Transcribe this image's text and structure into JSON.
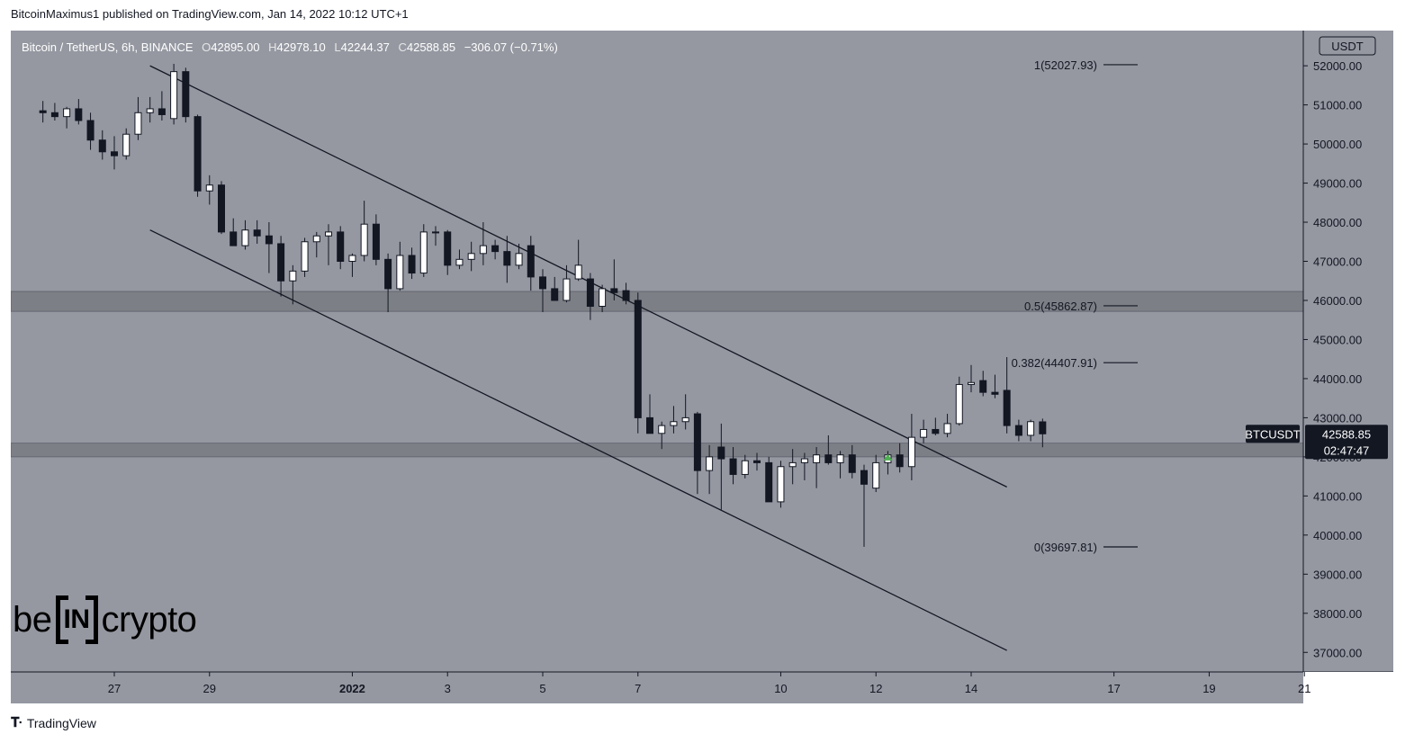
{
  "publish_line": "BitcoinMaximus1 published on TradingView.com, Jan 14, 2022 10:12 UTC+1",
  "footer_brand": "TradingView",
  "legend": {
    "symbol": "Bitcoin / TetherUS, 6h, BINANCE",
    "o_label": "O",
    "o_value": "42895.00",
    "h_label": "H",
    "h_value": "42978.10",
    "l_label": "L",
    "l_value": "42244.37",
    "c_label": "C",
    "c_value": "42588.85",
    "change": "−306.07 (−0.71%)"
  },
  "watermark": {
    "left": "be",
    "middle": "IN",
    "right": "crypto"
  },
  "colors": {
    "background": "#9598a1",
    "bullish": "#ffffff",
    "bearish": "#131722",
    "zone": "#7d7f86",
    "marker": "#4caf50"
  },
  "chart_data": {
    "type": "candlestick",
    "currency_label": "USDT",
    "ylim": [
      36500,
      52900
    ],
    "y_ticks": [
      37000,
      38000,
      39000,
      40000,
      41000,
      42000,
      43000,
      44000,
      45000,
      46000,
      47000,
      48000,
      49000,
      50000,
      51000,
      52000
    ],
    "x_ticks": [
      {
        "label": "27",
        "date": "2021-12-27"
      },
      {
        "label": "29",
        "date": "2021-12-29"
      },
      {
        "label": "2022",
        "date": "2022-01-01",
        "bold": true
      },
      {
        "label": "3",
        "date": "2022-01-03"
      },
      {
        "label": "5",
        "date": "2022-01-05"
      },
      {
        "label": "7",
        "date": "2022-01-07"
      },
      {
        "label": "10",
        "date": "2022-01-10"
      },
      {
        "label": "12",
        "date": "2022-01-12"
      },
      {
        "label": "14",
        "date": "2022-01-14"
      },
      {
        "label": "17",
        "date": "2022-01-17"
      },
      {
        "label": "19",
        "date": "2022-01-19"
      },
      {
        "label": "21",
        "date": "2022-01-21"
      }
    ],
    "price_tag": {
      "symbol": "BTCUSDT",
      "price": "42588.85",
      "countdown": "02:47:47"
    },
    "fib_levels": [
      {
        "label": "1(52027.93)",
        "value": 52027.93
      },
      {
        "label": "0.5(45862.87)",
        "value": 45862.87
      },
      {
        "label": "0.382(44407.91)",
        "value": 44407.91
      },
      {
        "label": "0(39697.81)",
        "value": 39697.81
      }
    ],
    "zones": [
      {
        "low": 45720,
        "high": 46230
      },
      {
        "low": 42000,
        "high": 42350
      }
    ],
    "channel": {
      "upper": [
        {
          "date": "2021-12-27 18:00",
          "price": 52000
        },
        {
          "date": "2022-01-14 18:00",
          "price": 41230
        }
      ],
      "lower": [
        {
          "date": "2021-12-27 18:00",
          "price": 47800
        },
        {
          "date": "2022-01-14 18:00",
          "price": 37050
        }
      ]
    },
    "marker": {
      "date": "2022-01-12 06:00",
      "price": 42000
    },
    "candles": [
      {
        "t": "2021-12-25 12:00",
        "o": 50850,
        "h": 51100,
        "l": 50550,
        "c": 50800
      },
      {
        "t": "2021-12-25 18:00",
        "o": 50800,
        "h": 51050,
        "l": 50600,
        "c": 50700
      },
      {
        "t": "2021-12-26 00:00",
        "o": 50700,
        "h": 50950,
        "l": 50400,
        "c": 50900
      },
      {
        "t": "2021-12-26 06:00",
        "o": 50900,
        "h": 51150,
        "l": 50500,
        "c": 50600
      },
      {
        "t": "2021-12-26 12:00",
        "o": 50600,
        "h": 50800,
        "l": 49850,
        "c": 50100
      },
      {
        "t": "2021-12-26 18:00",
        "o": 50100,
        "h": 50350,
        "l": 49600,
        "c": 49800
      },
      {
        "t": "2021-12-27 00:00",
        "o": 49800,
        "h": 50200,
        "l": 49350,
        "c": 49700
      },
      {
        "t": "2021-12-27 06:00",
        "o": 49700,
        "h": 50400,
        "l": 49600,
        "c": 50250
      },
      {
        "t": "2021-12-27 12:00",
        "o": 50250,
        "h": 51200,
        "l": 50100,
        "c": 50800
      },
      {
        "t": "2021-12-27 18:00",
        "o": 50800,
        "h": 51200,
        "l": 50550,
        "c": 50900
      },
      {
        "t": "2021-12-28 00:00",
        "o": 50900,
        "h": 51350,
        "l": 50600,
        "c": 50750
      },
      {
        "t": "2021-12-28 06:00",
        "o": 50650,
        "h": 52050,
        "l": 50500,
        "c": 51850
      },
      {
        "t": "2021-12-28 12:00",
        "o": 51850,
        "h": 51950,
        "l": 50550,
        "c": 50700
      },
      {
        "t": "2021-12-28 18:00",
        "o": 50700,
        "h": 50750,
        "l": 48650,
        "c": 48800
      },
      {
        "t": "2021-12-29 00:00",
        "o": 48800,
        "h": 49200,
        "l": 48450,
        "c": 48950
      },
      {
        "t": "2021-12-29 06:00",
        "o": 48950,
        "h": 49050,
        "l": 47700,
        "c": 47750
      },
      {
        "t": "2021-12-29 12:00",
        "o": 47750,
        "h": 48100,
        "l": 47400,
        "c": 47400
      },
      {
        "t": "2021-12-29 18:00",
        "o": 47400,
        "h": 48050,
        "l": 47300,
        "c": 47800
      },
      {
        "t": "2021-12-30 00:00",
        "o": 47800,
        "h": 48050,
        "l": 47450,
        "c": 47650
      },
      {
        "t": "2021-12-30 06:00",
        "o": 47650,
        "h": 48000,
        "l": 46700,
        "c": 47450
      },
      {
        "t": "2021-12-30 12:00",
        "o": 47450,
        "h": 47650,
        "l": 46100,
        "c": 46500
      },
      {
        "t": "2021-12-30 18:00",
        "o": 46500,
        "h": 46900,
        "l": 45900,
        "c": 46750
      },
      {
        "t": "2021-12-31 00:00",
        "o": 46750,
        "h": 47600,
        "l": 46600,
        "c": 47500
      },
      {
        "t": "2021-12-31 06:00",
        "o": 47500,
        "h": 47750,
        "l": 47100,
        "c": 47650
      },
      {
        "t": "2021-12-31 12:00",
        "o": 47650,
        "h": 47950,
        "l": 46900,
        "c": 47750
      },
      {
        "t": "2021-12-31 18:00",
        "o": 47750,
        "h": 47900,
        "l": 46800,
        "c": 47000
      },
      {
        "t": "2022-01-01 00:00",
        "o": 47000,
        "h": 47200,
        "l": 46600,
        "c": 47150
      },
      {
        "t": "2022-01-01 06:00",
        "o": 47150,
        "h": 48550,
        "l": 47000,
        "c": 47950
      },
      {
        "t": "2022-01-01 12:00",
        "o": 47950,
        "h": 48200,
        "l": 46900,
        "c": 47050
      },
      {
        "t": "2022-01-01 18:00",
        "o": 47050,
        "h": 47200,
        "l": 45700,
        "c": 46300
      },
      {
        "t": "2022-01-02 00:00",
        "o": 46300,
        "h": 47500,
        "l": 46250,
        "c": 47150
      },
      {
        "t": "2022-01-02 06:00",
        "o": 47150,
        "h": 47350,
        "l": 46550,
        "c": 46700
      },
      {
        "t": "2022-01-02 12:00",
        "o": 46700,
        "h": 47950,
        "l": 46600,
        "c": 47750
      },
      {
        "t": "2022-01-02 18:00",
        "o": 47750,
        "h": 47900,
        "l": 47400,
        "c": 47750
      },
      {
        "t": "2022-01-03 00:00",
        "o": 47750,
        "h": 47800,
        "l": 46650,
        "c": 46900
      },
      {
        "t": "2022-01-03 06:00",
        "o": 46900,
        "h": 47300,
        "l": 46800,
        "c": 47050
      },
      {
        "t": "2022-01-03 12:00",
        "o": 47050,
        "h": 47500,
        "l": 46750,
        "c": 47200
      },
      {
        "t": "2022-01-03 18:00",
        "o": 47200,
        "h": 48000,
        "l": 46900,
        "c": 47400
      },
      {
        "t": "2022-01-04 00:00",
        "o": 47400,
        "h": 47550,
        "l": 47050,
        "c": 47250
      },
      {
        "t": "2022-01-04 06:00",
        "o": 47250,
        "h": 47650,
        "l": 46450,
        "c": 46900
      },
      {
        "t": "2022-01-04 12:00",
        "o": 46900,
        "h": 47450,
        "l": 46800,
        "c": 47200
      },
      {
        "t": "2022-01-04 18:00",
        "o": 47400,
        "h": 47650,
        "l": 46250,
        "c": 46600
      },
      {
        "t": "2022-01-05 00:00",
        "o": 46600,
        "h": 46800,
        "l": 45700,
        "c": 46300
      },
      {
        "t": "2022-01-05 06:00",
        "o": 46300,
        "h": 46600,
        "l": 46000,
        "c": 46000
      },
      {
        "t": "2022-01-05 12:00",
        "o": 46000,
        "h": 46900,
        "l": 45950,
        "c": 46550
      },
      {
        "t": "2022-01-05 18:00",
        "o": 46550,
        "h": 47550,
        "l": 46500,
        "c": 46900
      },
      {
        "t": "2022-01-06 00:00",
        "o": 46550,
        "h": 46700,
        "l": 45500,
        "c": 45850
      },
      {
        "t": "2022-01-06 06:00",
        "o": 45850,
        "h": 46400,
        "l": 45700,
        "c": 46300
      },
      {
        "t": "2022-01-06 12:00",
        "o": 46300,
        "h": 47050,
        "l": 46000,
        "c": 46200
      },
      {
        "t": "2022-01-06 18:00",
        "o": 46250,
        "h": 46450,
        "l": 45900,
        "c": 46000
      },
      {
        "t": "2022-01-07 00:00",
        "o": 46000,
        "h": 46200,
        "l": 42600,
        "c": 43000
      },
      {
        "t": "2022-01-07 06:00",
        "o": 43000,
        "h": 43600,
        "l": 42700,
        "c": 42600
      },
      {
        "t": "2022-01-07 12:00",
        "o": 42600,
        "h": 42900,
        "l": 42200,
        "c": 42800
      },
      {
        "t": "2022-01-07 18:00",
        "o": 42800,
        "h": 43300,
        "l": 42600,
        "c": 42900
      },
      {
        "t": "2022-01-08 00:00",
        "o": 42900,
        "h": 43600,
        "l": 42700,
        "c": 43000
      },
      {
        "t": "2022-01-08 06:00",
        "o": 43100,
        "h": 43150,
        "l": 41050,
        "c": 41650
      },
      {
        "t": "2022-01-08 12:00",
        "o": 41650,
        "h": 42300,
        "l": 41050,
        "c": 42000
      },
      {
        "t": "2022-01-08 18:00",
        "o": 42250,
        "h": 42850,
        "l": 40650,
        "c": 41950
      },
      {
        "t": "2022-01-09 00:00",
        "o": 41950,
        "h": 42250,
        "l": 41300,
        "c": 41550
      },
      {
        "t": "2022-01-09 06:00",
        "o": 41550,
        "h": 42050,
        "l": 41450,
        "c": 41900
      },
      {
        "t": "2022-01-09 12:00",
        "o": 41900,
        "h": 42100,
        "l": 41650,
        "c": 41850
      },
      {
        "t": "2022-01-09 18:00",
        "o": 41850,
        "h": 42000,
        "l": 40850,
        "c": 40850
      },
      {
        "t": "2022-01-10 00:00",
        "o": 40850,
        "h": 41900,
        "l": 40700,
        "c": 41750
      },
      {
        "t": "2022-01-10 06:00",
        "o": 41750,
        "h": 42200,
        "l": 41300,
        "c": 41850
      },
      {
        "t": "2022-01-10 12:00",
        "o": 41850,
        "h": 42100,
        "l": 41400,
        "c": 41950
      },
      {
        "t": "2022-01-10 18:00",
        "o": 41850,
        "h": 42250,
        "l": 41200,
        "c": 42050
      },
      {
        "t": "2022-01-11 00:00",
        "o": 42050,
        "h": 42550,
        "l": 41800,
        "c": 41850
      },
      {
        "t": "2022-01-11 06:00",
        "o": 41850,
        "h": 42150,
        "l": 41450,
        "c": 42050
      },
      {
        "t": "2022-01-11 12:00",
        "o": 42050,
        "h": 42300,
        "l": 41450,
        "c": 41600
      },
      {
        "t": "2022-01-11 18:00",
        "o": 41650,
        "h": 41800,
        "l": 39700,
        "c": 41300
      },
      {
        "t": "2022-01-12 00:00",
        "o": 41200,
        "h": 42050,
        "l": 41100,
        "c": 41850
      },
      {
        "t": "2022-01-12 06:00",
        "o": 41850,
        "h": 42150,
        "l": 41550,
        "c": 42050
      },
      {
        "t": "2022-01-12 12:00",
        "o": 42050,
        "h": 42350,
        "l": 41600,
        "c": 41750
      },
      {
        "t": "2022-01-12 18:00",
        "o": 41750,
        "h": 43100,
        "l": 41400,
        "c": 42500
      },
      {
        "t": "2022-01-13 00:00",
        "o": 42500,
        "h": 42950,
        "l": 42350,
        "c": 42700
      },
      {
        "t": "2022-01-13 06:00",
        "o": 42700,
        "h": 43000,
        "l": 42550,
        "c": 42600
      },
      {
        "t": "2022-01-13 12:00",
        "o": 42600,
        "h": 43100,
        "l": 42500,
        "c": 42850
      },
      {
        "t": "2022-01-13 18:00",
        "o": 42850,
        "h": 44050,
        "l": 42800,
        "c": 43850
      },
      {
        "t": "2022-01-14 00:00",
        "o": 43850,
        "h": 44350,
        "l": 43650,
        "c": 43900
      },
      {
        "t": "2022-01-14 06:00",
        "o": 43950,
        "h": 44200,
        "l": 43550,
        "c": 43650
      },
      {
        "t": "2022-01-14 12:00",
        "o": 43650,
        "h": 44100,
        "l": 43500,
        "c": 43600
      },
      {
        "t": "2022-01-14 18:00",
        "o": 43700,
        "h": 44550,
        "l": 42600,
        "c": 42800
      },
      {
        "t": "2022-01-15 00:00",
        "o": 42800,
        "h": 42950,
        "l": 42400,
        "c": 42550
      },
      {
        "t": "2022-01-15 06:00",
        "o": 42550,
        "h": 42950,
        "l": 42400,
        "c": 42900
      },
      {
        "t": "2022-01-15 12:00",
        "o": 42895,
        "h": 42978.1,
        "l": 42244.37,
        "c": 42588.85
      }
    ]
  }
}
